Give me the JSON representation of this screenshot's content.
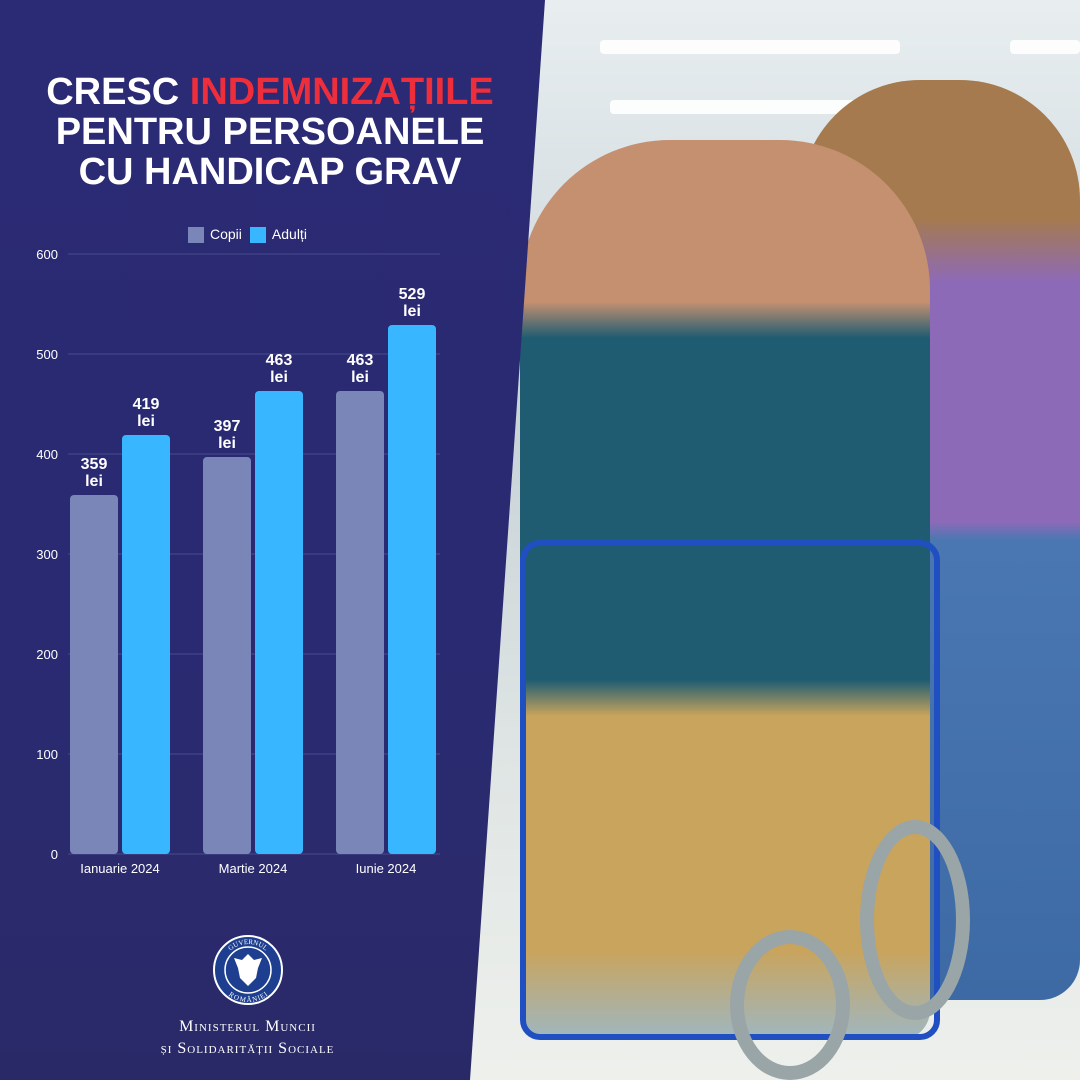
{
  "title": {
    "line1_white": "CRESC ",
    "line1_red": "INDEMNIZAȚIILE",
    "line2": "PENTRU PERSOANELE",
    "line3": "CU HANDICAP GRAV"
  },
  "colors": {
    "background": "#2b2a74",
    "copii": "#7a86b8",
    "adulti": "#38b6ff",
    "highlight": "#ee2e3a"
  },
  "chart_data": {
    "type": "bar",
    "categories": [
      "Ianuarie 2024",
      "Martie 2024",
      "Iunie 2024"
    ],
    "series": [
      {
        "name": "Copii",
        "values": [
          359,
          397,
          463
        ]
      },
      {
        "name": "Adulți",
        "values": [
          419,
          463,
          529
        ]
      }
    ],
    "data_label_unit": "lei",
    "yticks": [
      0,
      100,
      200,
      300,
      400,
      500,
      600
    ],
    "ylim": [
      0,
      600
    ],
    "grid": true,
    "legend": "top"
  },
  "logo": {
    "text": "GUVERNUL ROMÂNIEI"
  },
  "ministry": {
    "line1": "Ministerul Muncii",
    "line2": "și Solidarității Sociale"
  }
}
